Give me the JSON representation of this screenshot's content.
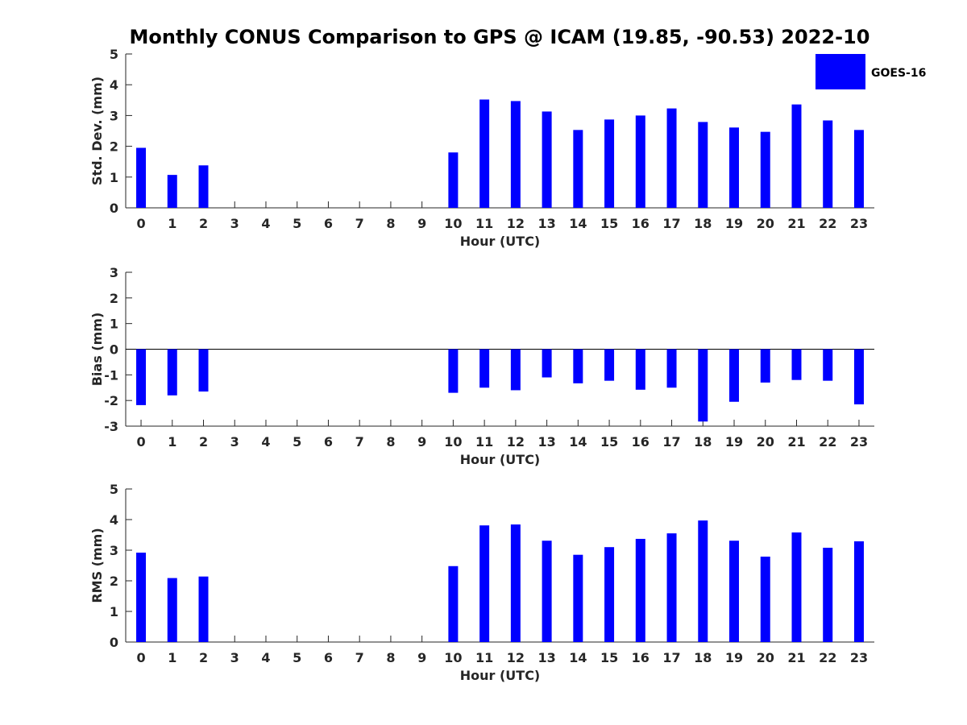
{
  "chart_data": {
    "title": "Monthly CONUS Comparison to GPS @ ICAM (19.85, -90.53) 2022-10",
    "legend": {
      "label": "GOES-16",
      "color": "#0000ff",
      "placement": "top-right"
    },
    "panels": [
      {
        "type": "bar",
        "name": "std-dev",
        "ylabel": "Std. Dev. (mm)",
        "xlabel": "Hour (UTC)",
        "ylim": [
          0,
          5
        ],
        "yticks": [
          "0",
          "1",
          "2",
          "3",
          "4",
          "5"
        ],
        "categories": [
          "0",
          "1",
          "2",
          "3",
          "4",
          "5",
          "6",
          "7",
          "8",
          "9",
          "10",
          "11",
          "12",
          "13",
          "14",
          "15",
          "16",
          "17",
          "18",
          "19",
          "20",
          "21",
          "22",
          "23"
        ],
        "values": [
          1.95,
          1.07,
          1.38,
          null,
          null,
          null,
          null,
          null,
          null,
          null,
          1.8,
          3.52,
          3.47,
          3.13,
          2.53,
          2.87,
          3.0,
          3.23,
          2.79,
          2.61,
          2.47,
          3.36,
          2.84,
          2.53
        ]
      },
      {
        "type": "bar",
        "name": "bias",
        "ylabel": "Bias (mm)",
        "xlabel": "Hour (UTC)",
        "ylim": [
          -3,
          3
        ],
        "yticks": [
          "-3",
          "-2",
          "-1",
          "0",
          "1",
          "2",
          "3"
        ],
        "zero_line": true,
        "categories": [
          "0",
          "1",
          "2",
          "3",
          "4",
          "5",
          "6",
          "7",
          "8",
          "9",
          "10",
          "11",
          "12",
          "13",
          "14",
          "15",
          "16",
          "17",
          "18",
          "19",
          "20",
          "21",
          "22",
          "23"
        ],
        "values": [
          -2.18,
          -1.8,
          -1.65,
          null,
          null,
          null,
          null,
          null,
          null,
          null,
          -1.7,
          -1.5,
          -1.6,
          -1.1,
          -1.33,
          -1.23,
          -1.58,
          -1.5,
          -2.82,
          -2.05,
          -1.3,
          -1.2,
          -1.23,
          -2.15
        ]
      },
      {
        "type": "bar",
        "name": "rms",
        "ylabel": "RMS (mm)",
        "xlabel": "Hour (UTC)",
        "ylim": [
          0,
          5
        ],
        "yticks": [
          "0",
          "1",
          "2",
          "3",
          "4",
          "5"
        ],
        "categories": [
          "0",
          "1",
          "2",
          "3",
          "4",
          "5",
          "6",
          "7",
          "8",
          "9",
          "10",
          "11",
          "12",
          "13",
          "14",
          "15",
          "16",
          "17",
          "18",
          "19",
          "20",
          "21",
          "22",
          "23"
        ],
        "values": [
          2.92,
          2.09,
          2.14,
          null,
          null,
          null,
          null,
          null,
          null,
          null,
          2.48,
          3.81,
          3.84,
          3.31,
          2.85,
          3.1,
          3.37,
          3.55,
          3.97,
          3.31,
          2.79,
          3.58,
          3.08,
          3.29
        ]
      }
    ]
  }
}
